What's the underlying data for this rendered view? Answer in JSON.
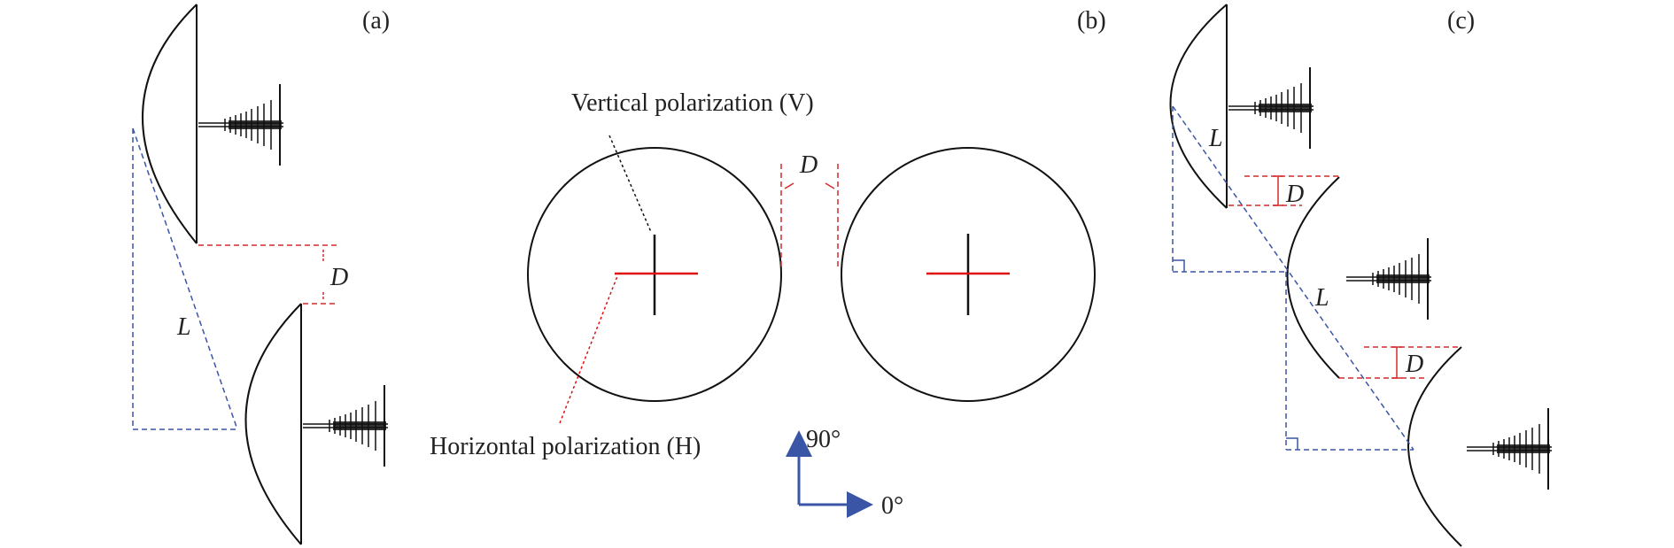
{
  "panels": {
    "a": {
      "label": "(a)",
      "distance_label": "D",
      "length_label": "L"
    },
    "b": {
      "label": "(b)",
      "distance_label": "D",
      "vertical_label": "Vertical polarization (V)",
      "horizontal_label": "Horizontal polarization (H)",
      "axis_y_label": "90°",
      "axis_x_label": "0°"
    },
    "c": {
      "label": "(c)",
      "length_label_top": "L",
      "distance_label_top": "D",
      "length_label_mid": "L",
      "distance_label_bottom": "D"
    }
  },
  "colors": {
    "outline": "#111111",
    "dimension_red": "#d42a2a",
    "dimension_blue": "#3a55a5",
    "polarization_red": "#e01010",
    "axis_arrow": "#3a55a5"
  }
}
